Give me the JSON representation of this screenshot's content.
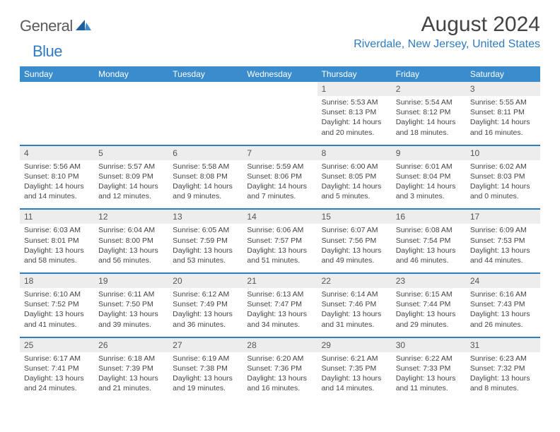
{
  "logo": {
    "general": "General",
    "blue": "Blue"
  },
  "title": "August 2024",
  "location": "Riverdale, New Jersey, United States",
  "colors": {
    "header_bg": "#3a8ccc",
    "accent": "#2f7cc0",
    "daynum_bg": "#ededed",
    "text": "#444444"
  },
  "weekdays": [
    "Sunday",
    "Monday",
    "Tuesday",
    "Wednesday",
    "Thursday",
    "Friday",
    "Saturday"
  ],
  "weeks": [
    [
      null,
      null,
      null,
      null,
      {
        "n": "1",
        "sr": "Sunrise: 5:53 AM",
        "ss": "Sunset: 8:13 PM",
        "d1": "Daylight: 14 hours",
        "d2": "and 20 minutes."
      },
      {
        "n": "2",
        "sr": "Sunrise: 5:54 AM",
        "ss": "Sunset: 8:12 PM",
        "d1": "Daylight: 14 hours",
        "d2": "and 18 minutes."
      },
      {
        "n": "3",
        "sr": "Sunrise: 5:55 AM",
        "ss": "Sunset: 8:11 PM",
        "d1": "Daylight: 14 hours",
        "d2": "and 16 minutes."
      }
    ],
    [
      {
        "n": "4",
        "sr": "Sunrise: 5:56 AM",
        "ss": "Sunset: 8:10 PM",
        "d1": "Daylight: 14 hours",
        "d2": "and 14 minutes."
      },
      {
        "n": "5",
        "sr": "Sunrise: 5:57 AM",
        "ss": "Sunset: 8:09 PM",
        "d1": "Daylight: 14 hours",
        "d2": "and 12 minutes."
      },
      {
        "n": "6",
        "sr": "Sunrise: 5:58 AM",
        "ss": "Sunset: 8:08 PM",
        "d1": "Daylight: 14 hours",
        "d2": "and 9 minutes."
      },
      {
        "n": "7",
        "sr": "Sunrise: 5:59 AM",
        "ss": "Sunset: 8:06 PM",
        "d1": "Daylight: 14 hours",
        "d2": "and 7 minutes."
      },
      {
        "n": "8",
        "sr": "Sunrise: 6:00 AM",
        "ss": "Sunset: 8:05 PM",
        "d1": "Daylight: 14 hours",
        "d2": "and 5 minutes."
      },
      {
        "n": "9",
        "sr": "Sunrise: 6:01 AM",
        "ss": "Sunset: 8:04 PM",
        "d1": "Daylight: 14 hours",
        "d2": "and 3 minutes."
      },
      {
        "n": "10",
        "sr": "Sunrise: 6:02 AM",
        "ss": "Sunset: 8:03 PM",
        "d1": "Daylight: 14 hours",
        "d2": "and 0 minutes."
      }
    ],
    [
      {
        "n": "11",
        "sr": "Sunrise: 6:03 AM",
        "ss": "Sunset: 8:01 PM",
        "d1": "Daylight: 13 hours",
        "d2": "and 58 minutes."
      },
      {
        "n": "12",
        "sr": "Sunrise: 6:04 AM",
        "ss": "Sunset: 8:00 PM",
        "d1": "Daylight: 13 hours",
        "d2": "and 56 minutes."
      },
      {
        "n": "13",
        "sr": "Sunrise: 6:05 AM",
        "ss": "Sunset: 7:59 PM",
        "d1": "Daylight: 13 hours",
        "d2": "and 53 minutes."
      },
      {
        "n": "14",
        "sr": "Sunrise: 6:06 AM",
        "ss": "Sunset: 7:57 PM",
        "d1": "Daylight: 13 hours",
        "d2": "and 51 minutes."
      },
      {
        "n": "15",
        "sr": "Sunrise: 6:07 AM",
        "ss": "Sunset: 7:56 PM",
        "d1": "Daylight: 13 hours",
        "d2": "and 49 minutes."
      },
      {
        "n": "16",
        "sr": "Sunrise: 6:08 AM",
        "ss": "Sunset: 7:54 PM",
        "d1": "Daylight: 13 hours",
        "d2": "and 46 minutes."
      },
      {
        "n": "17",
        "sr": "Sunrise: 6:09 AM",
        "ss": "Sunset: 7:53 PM",
        "d1": "Daylight: 13 hours",
        "d2": "and 44 minutes."
      }
    ],
    [
      {
        "n": "18",
        "sr": "Sunrise: 6:10 AM",
        "ss": "Sunset: 7:52 PM",
        "d1": "Daylight: 13 hours",
        "d2": "and 41 minutes."
      },
      {
        "n": "19",
        "sr": "Sunrise: 6:11 AM",
        "ss": "Sunset: 7:50 PM",
        "d1": "Daylight: 13 hours",
        "d2": "and 39 minutes."
      },
      {
        "n": "20",
        "sr": "Sunrise: 6:12 AM",
        "ss": "Sunset: 7:49 PM",
        "d1": "Daylight: 13 hours",
        "d2": "and 36 minutes."
      },
      {
        "n": "21",
        "sr": "Sunrise: 6:13 AM",
        "ss": "Sunset: 7:47 PM",
        "d1": "Daylight: 13 hours",
        "d2": "and 34 minutes."
      },
      {
        "n": "22",
        "sr": "Sunrise: 6:14 AM",
        "ss": "Sunset: 7:46 PM",
        "d1": "Daylight: 13 hours",
        "d2": "and 31 minutes."
      },
      {
        "n": "23",
        "sr": "Sunrise: 6:15 AM",
        "ss": "Sunset: 7:44 PM",
        "d1": "Daylight: 13 hours",
        "d2": "and 29 minutes."
      },
      {
        "n": "24",
        "sr": "Sunrise: 6:16 AM",
        "ss": "Sunset: 7:43 PM",
        "d1": "Daylight: 13 hours",
        "d2": "and 26 minutes."
      }
    ],
    [
      {
        "n": "25",
        "sr": "Sunrise: 6:17 AM",
        "ss": "Sunset: 7:41 PM",
        "d1": "Daylight: 13 hours",
        "d2": "and 24 minutes."
      },
      {
        "n": "26",
        "sr": "Sunrise: 6:18 AM",
        "ss": "Sunset: 7:39 PM",
        "d1": "Daylight: 13 hours",
        "d2": "and 21 minutes."
      },
      {
        "n": "27",
        "sr": "Sunrise: 6:19 AM",
        "ss": "Sunset: 7:38 PM",
        "d1": "Daylight: 13 hours",
        "d2": "and 19 minutes."
      },
      {
        "n": "28",
        "sr": "Sunrise: 6:20 AM",
        "ss": "Sunset: 7:36 PM",
        "d1": "Daylight: 13 hours",
        "d2": "and 16 minutes."
      },
      {
        "n": "29",
        "sr": "Sunrise: 6:21 AM",
        "ss": "Sunset: 7:35 PM",
        "d1": "Daylight: 13 hours",
        "d2": "and 14 minutes."
      },
      {
        "n": "30",
        "sr": "Sunrise: 6:22 AM",
        "ss": "Sunset: 7:33 PM",
        "d1": "Daylight: 13 hours",
        "d2": "and 11 minutes."
      },
      {
        "n": "31",
        "sr": "Sunrise: 6:23 AM",
        "ss": "Sunset: 7:32 PM",
        "d1": "Daylight: 13 hours",
        "d2": "and 8 minutes."
      }
    ]
  ]
}
